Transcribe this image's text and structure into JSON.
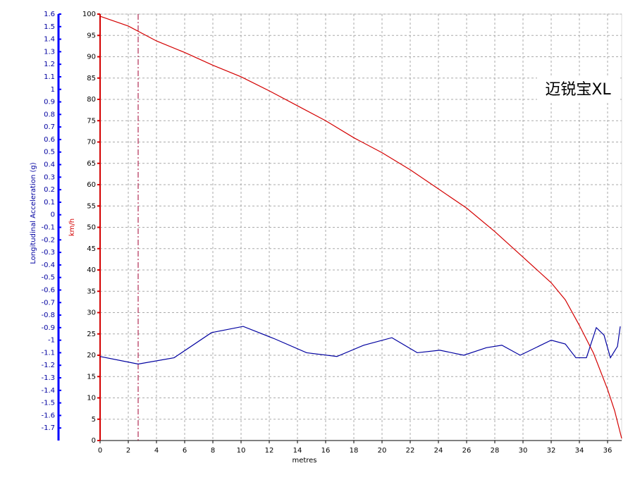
{
  "chart_data": {
    "type": "line",
    "annotation": "迈锐宝XL",
    "xlabel": "metres",
    "ylabel": "km/h",
    "y2label": "Longitudinal Acceleration (g)",
    "xlim": [
      0,
      37
    ],
    "xticks": [
      0,
      2,
      4,
      6,
      8,
      10,
      12,
      14,
      16,
      18,
      20,
      22,
      24,
      26,
      28,
      30,
      32,
      34,
      36
    ],
    "ylim": [
      0,
      100
    ],
    "yticks": [
      0,
      5,
      10,
      15,
      20,
      25,
      30,
      35,
      40,
      45,
      50,
      55,
      60,
      65,
      70,
      75,
      80,
      85,
      90,
      95,
      100
    ],
    "y2lim": [
      -1.8,
      1.6
    ],
    "y2ticks": [
      1.6,
      1.5,
      1.4,
      1.3,
      1.2,
      1.1,
      1,
      0.9,
      0.8,
      0.7,
      0.6,
      0.5,
      0.4,
      0.3,
      0.2,
      0.1,
      0,
      -0.1,
      -0.2,
      -0.3,
      -0.4,
      -0.5,
      -0.6,
      -0.7,
      -0.8,
      -0.9,
      -1,
      -1.1,
      -1.2,
      -1.3,
      -1.4,
      -1.5,
      -1.6,
      -1.7
    ],
    "grid": true,
    "marker_x": 2.7,
    "series": [
      {
        "name": "km/h",
        "color": "#d40000",
        "x": [
          0,
          2,
          4,
          6,
          8,
          10,
          12,
          14,
          16,
          18,
          20,
          22,
          24,
          26,
          28,
          30,
          32,
          33,
          34,
          35,
          36,
          36.5,
          37
        ],
        "values": [
          99.5,
          97.2,
          93.7,
          91,
          88,
          85.3,
          82,
          78.5,
          75,
          71,
          67.5,
          63.5,
          59,
          54.5,
          49,
          43,
          37,
          33,
          27,
          20.5,
          12,
          7,
          0.5
        ]
      },
      {
        "name": "Longitudinal Acceleration (g)",
        "color": "#0000a0",
        "axis": "y2",
        "x": [
          0,
          2.7,
          5.25,
          7.9,
          10.15,
          12.4,
          14.65,
          16.8,
          18.7,
          20.7,
          22.5,
          24.1,
          25.8,
          27.4,
          28.5,
          29.8,
          32,
          33,
          33.75,
          34.5,
          35.2,
          35.75,
          36.2,
          36.7,
          36.9
        ],
        "values": [
          -1.13,
          -1.19,
          -1.14,
          -0.94,
          -0.89,
          -0.99,
          -1.1,
          -1.13,
          -1.04,
          -0.98,
          -1.1,
          -1.08,
          -1.12,
          -1.06,
          -1.04,
          -1.12,
          -1.0,
          -1.03,
          -1.14,
          -1.14,
          -0.9,
          -0.96,
          -1.14,
          -1.05,
          -0.89
        ]
      }
    ]
  }
}
